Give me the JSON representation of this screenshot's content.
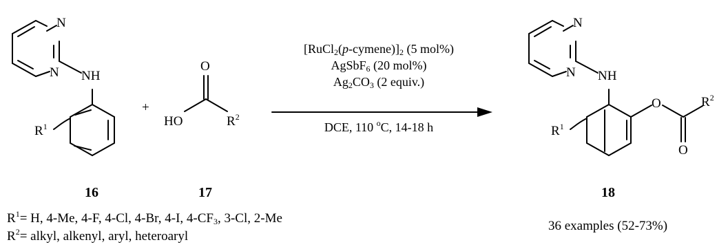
{
  "compounds": {
    "c16": {
      "label": "16",
      "n_top": "N",
      "n_left": "N",
      "nh": "NH",
      "r1_sym": "R",
      "r1_sup": "1"
    },
    "c17": {
      "label": "17",
      "o": "O",
      "ho": "HO",
      "r2_sym": "R",
      "r2_sup": "2"
    },
    "c18": {
      "label": "18",
      "n_top": "N",
      "n_left": "N",
      "nh": "NH",
      "o_ester": "O",
      "o_carbonyl": "O",
      "r1_sym": "R",
      "r1_sup": "1",
      "r2_sym": "R",
      "r2_sup": "2"
    }
  },
  "plus": "+",
  "conditions": {
    "line1": {
      "a": "[RuCl",
      "b": "2",
      "c": "(",
      "d": "p",
      "e": "-cymene)]",
      "f": "2",
      "g": " (5 mol%)"
    },
    "line2": {
      "a": "AgSbF",
      "b": "6",
      "c": " (20 mol%)"
    },
    "line3": {
      "a": "Ag",
      "b": "2",
      "c": "CO",
      "d": "3",
      "e": " (2 equiv.)"
    },
    "line4": {
      "a": "DCE, 110 ",
      "b": "o",
      "c": "C, 14-18 h"
    }
  },
  "footnotes": {
    "r1": {
      "sym": "R",
      "sup": "1",
      "text": "= H, 4-Me, 4-F, 4-Cl, 4-Br, 4-I, 4-CF",
      "sub": "3",
      "tail": ", 3-Cl, 2-Me"
    },
    "r2": {
      "sym": "R",
      "sup": "2",
      "text": "= alkyl, alkenyl, aryl, heteroaryl"
    },
    "examples": "36 examples (52-73%)"
  }
}
